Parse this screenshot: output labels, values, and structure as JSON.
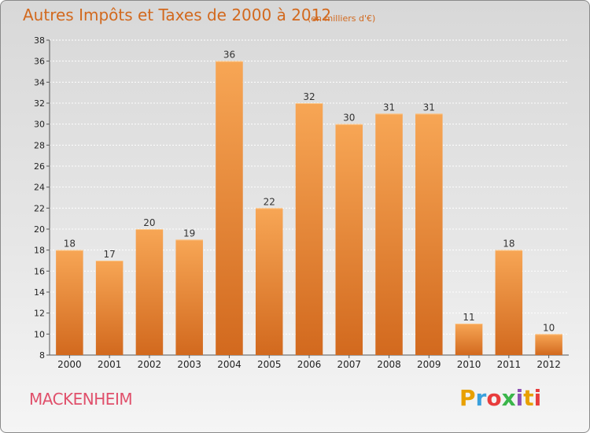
{
  "header": {
    "title": "Autres Impôts et Taxes de 2000 à 2012",
    "subtitle": "(en milliers d'€)"
  },
  "footer": {
    "commune": "MACKENHEIM",
    "logo_text": "Proxiti",
    "logo_colors": [
      "#e8a000",
      "#3aa0dc",
      "#e83c3c",
      "#3ab54a",
      "#8c50b4",
      "#e8a000",
      "#e83c3c"
    ]
  },
  "colors": {
    "bar_top": "#f7a655",
    "bar_bottom": "#d2691e",
    "grid": "#ffffff",
    "axis_text": "#222222"
  },
  "chart_data": {
    "type": "bar",
    "title": "Autres Impôts et Taxes de 2000 à 2012",
    "subtitle": "(en milliers d'€)",
    "xlabel": "",
    "ylabel": "",
    "categories": [
      "2000",
      "2001",
      "2002",
      "2003",
      "2004",
      "2005",
      "2006",
      "2007",
      "2008",
      "2009",
      "2010",
      "2011",
      "2012"
    ],
    "values": [
      18,
      17,
      20,
      19,
      36,
      22,
      32,
      30,
      31,
      31,
      11,
      18,
      10
    ],
    "ylim": [
      8,
      38
    ],
    "yticks": [
      8,
      10,
      12,
      14,
      16,
      18,
      20,
      22,
      24,
      26,
      28,
      30,
      32,
      34,
      36,
      38
    ],
    "grid": "horizontal, dotted",
    "legend": "none"
  }
}
